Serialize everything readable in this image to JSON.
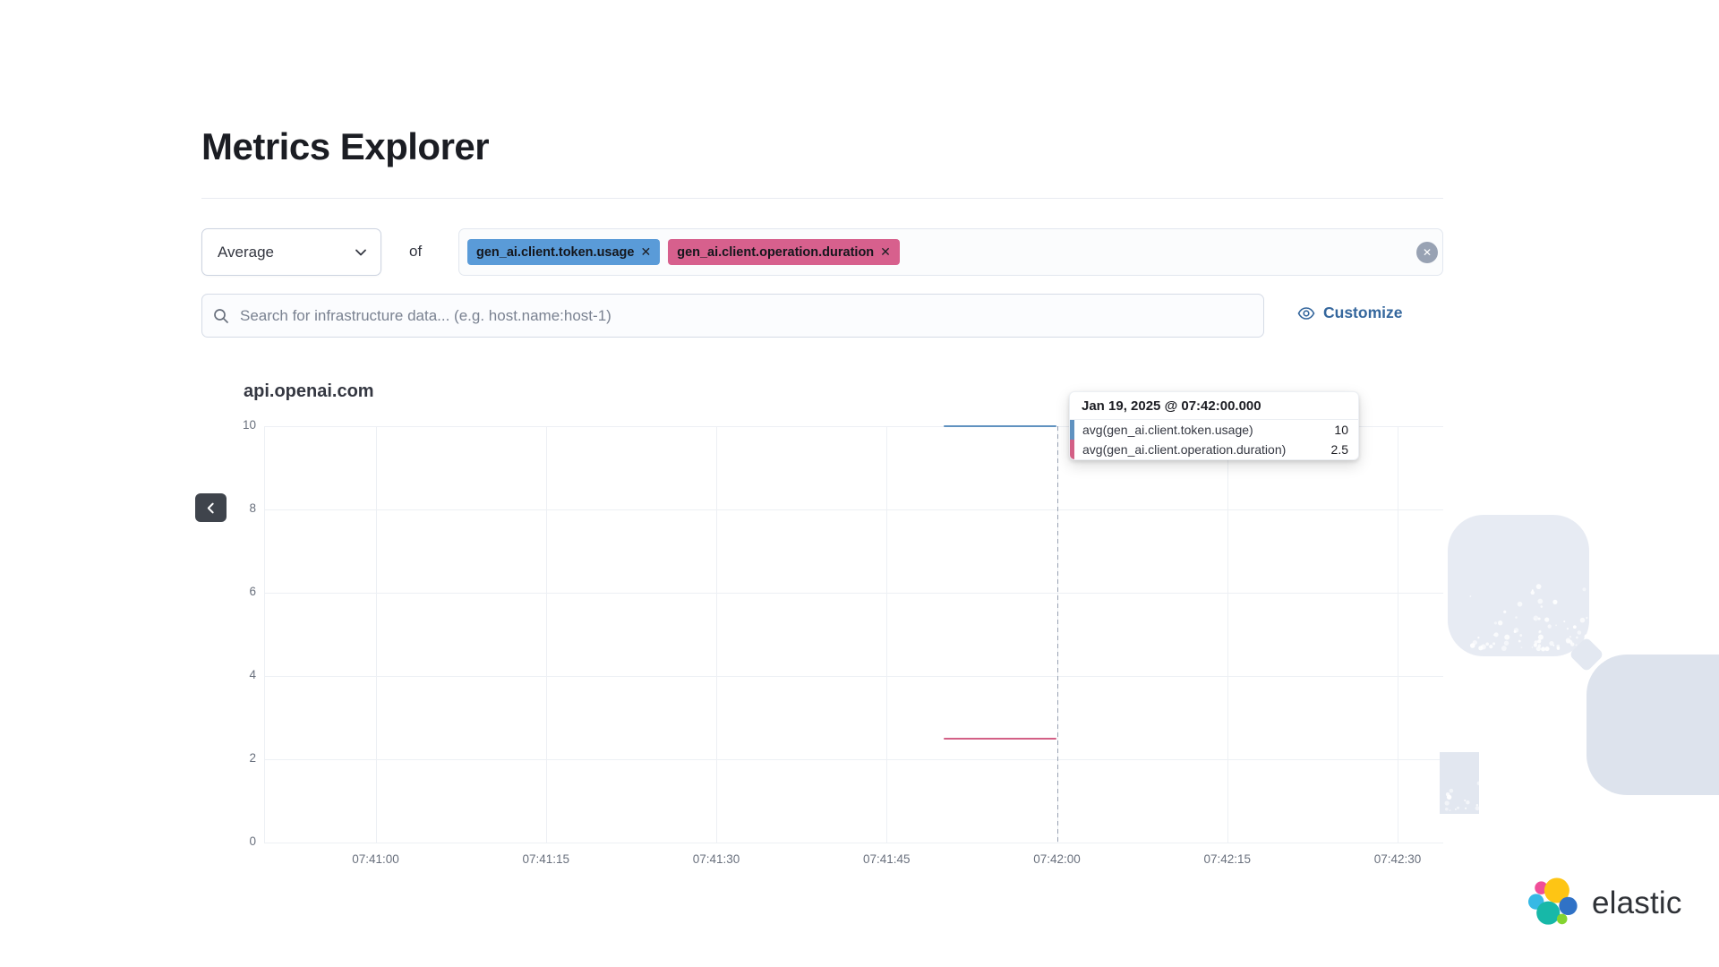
{
  "page": {
    "title": "Metrics Explorer"
  },
  "controls": {
    "aggregation": {
      "value": "Average"
    },
    "of_label": "of",
    "metrics": [
      {
        "label": "gen_ai.client.token.usage",
        "color": "#5a9bd8",
        "remove_icon": "✕"
      },
      {
        "label": "gen_ai.client.operation.duration",
        "color": "#d7608d",
        "remove_icon": "✕"
      }
    ],
    "clear_all_icon": "✕"
  },
  "search": {
    "placeholder": "Search for infrastructure data... (e.g. host.name:host-1)"
  },
  "customize": {
    "label": "Customize"
  },
  "chart_data": {
    "type": "line",
    "title": "api.openai.com",
    "x_ticks": [
      "07:41:00",
      "07:41:15",
      "07:41:30",
      "07:41:45",
      "07:42:00",
      "07:42:15",
      "07:42:30"
    ],
    "y_ticks": [
      0,
      2,
      4,
      6,
      8,
      10
    ],
    "ylim": [
      0,
      10
    ],
    "grid": true,
    "legend_position": "none",
    "series": [
      {
        "name": "avg(gen_ai.client.token.usage)",
        "color": "#6092c0",
        "points": [
          {
            "x": "07:41:50",
            "y": 10
          },
          {
            "x": "07:42:00",
            "y": 10
          }
        ]
      },
      {
        "name": "avg(gen_ai.client.operation.duration)",
        "color": "#d36086",
        "points": [
          {
            "x": "07:41:50",
            "y": 2.5
          },
          {
            "x": "07:42:00",
            "y": 2.5
          }
        ]
      }
    ],
    "crosshair_x": "07:42:00"
  },
  "tooltip": {
    "header": "Jan 19, 2025 @ 07:42:00.000",
    "rows": [
      {
        "label": "avg(gen_ai.client.token.usage)",
        "value": "10",
        "color": "#6092c0"
      },
      {
        "label": "avg(gen_ai.client.operation.duration)",
        "value": "2.5",
        "color": "#d36086"
      }
    ]
  },
  "branding": {
    "label": "elastic",
    "logo_colors": [
      "#f04e98",
      "#fec514",
      "#36b9e5",
      "#17b8a8",
      "#3072c6",
      "#84d430"
    ]
  }
}
